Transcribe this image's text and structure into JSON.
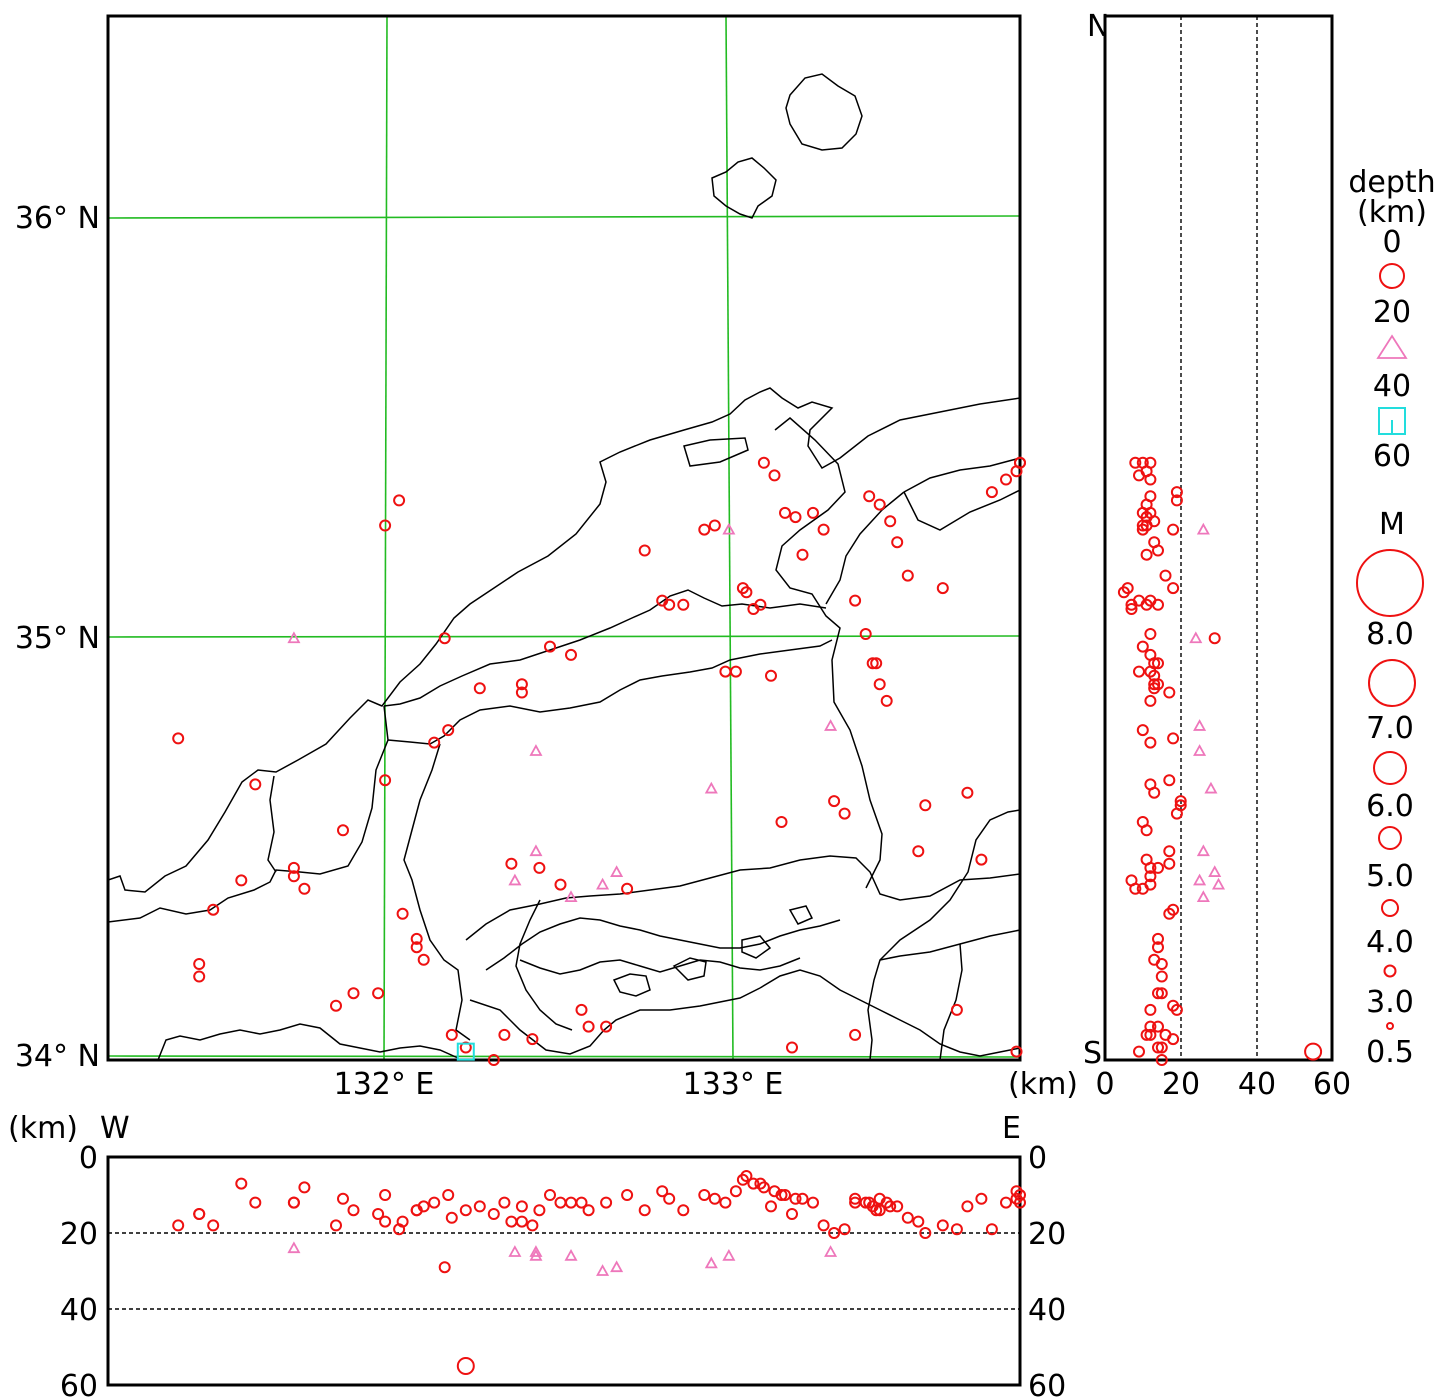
{
  "map": {
    "lat_labels": [
      "36° N",
      "35° N",
      "34° N"
    ],
    "lon_labels": [
      "132° E",
      "133° E"
    ]
  },
  "ns_section": {
    "north_label": "N",
    "south_label": "S",
    "unit_label": "(km)",
    "ticks": [
      "0",
      "20",
      "40",
      "60"
    ]
  },
  "ew_section": {
    "west_label": "W",
    "east_label": "E",
    "unit_label": "(km)",
    "left_ticks": [
      "0",
      "20",
      "40",
      "60"
    ],
    "right_ticks": [
      "0",
      "20",
      "40",
      "60"
    ]
  },
  "legend": {
    "depth_title_line1": "depth",
    "depth_title_line2": "(km)",
    "depth_levels": [
      "0",
      "20",
      "40",
      "60"
    ],
    "depth_symbols": [
      "circle-icon",
      "triangle-icon",
      "square-icon"
    ],
    "magnitude_title": "M",
    "magnitude_levels": [
      "8.0",
      "7.0",
      "6.0",
      "5.0",
      "4.0",
      "3.0",
      "0.5"
    ]
  },
  "colors": {
    "shallow": "#ee1111",
    "intermediate": "#ee77bb",
    "deep": "#22dddd",
    "grid": "#22bb22"
  },
  "chart_data": {
    "type": "scatter",
    "lon_range": [
      131.2,
      133.8
    ],
    "lat_range": [
      34.0,
      36.5
    ],
    "depth_range": [
      0,
      60
    ],
    "events": [
      [
        131.4,
        34.77,
        18
      ],
      [
        131.46,
        34.23,
        15
      ],
      [
        131.46,
        34.2,
        15
      ],
      [
        131.5,
        34.36,
        18
      ],
      [
        131.58,
        34.43,
        7
      ],
      [
        131.62,
        34.66,
        12
      ],
      [
        131.73,
        34.46,
        12
      ],
      [
        131.73,
        34.44,
        12
      ],
      [
        131.76,
        34.41,
        8
      ],
      [
        131.85,
        34.13,
        18
      ],
      [
        131.87,
        34.55,
        11
      ],
      [
        131.9,
        34.16,
        14
      ],
      [
        131.97,
        34.16,
        15
      ],
      [
        131.99,
        35.28,
        10
      ],
      [
        131.99,
        34.67,
        17
      ],
      [
        132.03,
        35.34,
        19
      ],
      [
        132.04,
        34.35,
        17
      ],
      [
        132.08,
        34.27,
        14
      ],
      [
        132.08,
        34.29,
        14
      ],
      [
        132.1,
        34.24,
        13
      ],
      [
        132.13,
        34.76,
        12
      ],
      [
        132.17,
        34.79,
        10
      ],
      [
        132.18,
        34.06,
        16
      ],
      [
        132.22,
        34.03,
        14
      ],
      [
        132.26,
        34.89,
        13
      ],
      [
        132.3,
        34.0,
        15
      ],
      [
        132.33,
        34.06,
        12
      ],
      [
        132.35,
        34.47,
        17
      ],
      [
        132.38,
        34.9,
        13
      ],
      [
        132.38,
        34.88,
        17
      ],
      [
        132.41,
        34.05,
        18
      ],
      [
        132.43,
        34.46,
        14
      ],
      [
        132.46,
        34.99,
        10
      ],
      [
        132.49,
        34.42,
        12
      ],
      [
        132.52,
        34.97,
        12
      ],
      [
        132.55,
        34.12,
        12
      ],
      [
        132.57,
        34.08,
        14
      ],
      [
        132.62,
        34.08,
        12
      ],
      [
        132.68,
        34.41,
        10
      ],
      [
        132.73,
        35.22,
        14
      ],
      [
        132.78,
        35.1,
        9
      ],
      [
        132.8,
        35.09,
        11
      ],
      [
        132.84,
        35.09,
        14
      ],
      [
        132.9,
        35.27,
        10
      ],
      [
        132.93,
        35.28,
        11
      ],
      [
        132.96,
        34.93,
        12
      ],
      [
        132.99,
        34.93,
        9
      ],
      [
        133.01,
        35.13,
        6
      ],
      [
        133.02,
        35.12,
        5
      ],
      [
        133.04,
        35.08,
        7
      ],
      [
        133.06,
        35.09,
        7
      ],
      [
        133.09,
        34.92,
        13
      ],
      [
        133.12,
        34.57,
        10
      ],
      [
        133.15,
        34.03,
        15
      ],
      [
        133.18,
        35.21,
        11
      ],
      [
        133.21,
        35.31,
        12
      ],
      [
        133.24,
        35.27,
        18
      ],
      [
        133.27,
        34.62,
        20
      ],
      [
        133.3,
        34.59,
        19
      ],
      [
        133.33,
        34.06,
        11
      ],
      [
        133.37,
        35.35,
        12
      ],
      [
        133.4,
        35.33,
        11
      ],
      [
        133.43,
        35.29,
        13
      ],
      [
        133.45,
        35.24,
        13
      ],
      [
        133.48,
        35.16,
        16
      ],
      [
        133.51,
        34.5,
        17
      ],
      [
        133.53,
        34.61,
        20
      ],
      [
        133.58,
        35.13,
        18
      ],
      [
        133.62,
        34.12,
        19
      ],
      [
        133.65,
        34.64,
        13
      ],
      [
        133.69,
        34.48,
        11
      ],
      [
        133.72,
        35.36,
        19
      ],
      [
        133.76,
        35.39,
        12
      ],
      [
        133.79,
        34.02,
        9
      ],
      [
        133.79,
        35.41,
        11
      ],
      [
        133.8,
        35.43,
        10
      ],
      [
        133.8,
        35.43,
        12
      ],
      [
        132.16,
        35.01,
        29
      ],
      [
        133.07,
        35.43,
        8
      ],
      [
        133.1,
        35.4,
        9
      ],
      [
        133.13,
        35.31,
        10
      ],
      [
        133.16,
        35.3,
        11
      ],
      [
        133.33,
        35.1,
        12
      ],
      [
        133.36,
        35.02,
        12
      ],
      [
        133.38,
        34.95,
        13
      ],
      [
        133.39,
        34.95,
        14
      ],
      [
        133.4,
        34.9,
        14
      ],
      [
        133.42,
        34.86,
        12
      ]
    ],
    "intermediate_events": [
      [
        131.73,
        35.01,
        24
      ],
      [
        132.42,
        34.74,
        25
      ],
      [
        132.42,
        34.5,
        26
      ],
      [
        132.36,
        34.43,
        25
      ],
      [
        132.52,
        34.39,
        26
      ],
      [
        132.61,
        34.42,
        30
      ],
      [
        132.65,
        34.45,
        29
      ],
      [
        132.92,
        34.65,
        28
      ],
      [
        132.97,
        35.27,
        26
      ],
      [
        133.26,
        34.8,
        25
      ]
    ],
    "deep_events": [
      [
        132.22,
        34.02,
        55
      ]
    ],
    "magnitude_scale": [
      8.0,
      7.0,
      6.0,
      5.0,
      4.0,
      3.0,
      0.5
    ]
  }
}
